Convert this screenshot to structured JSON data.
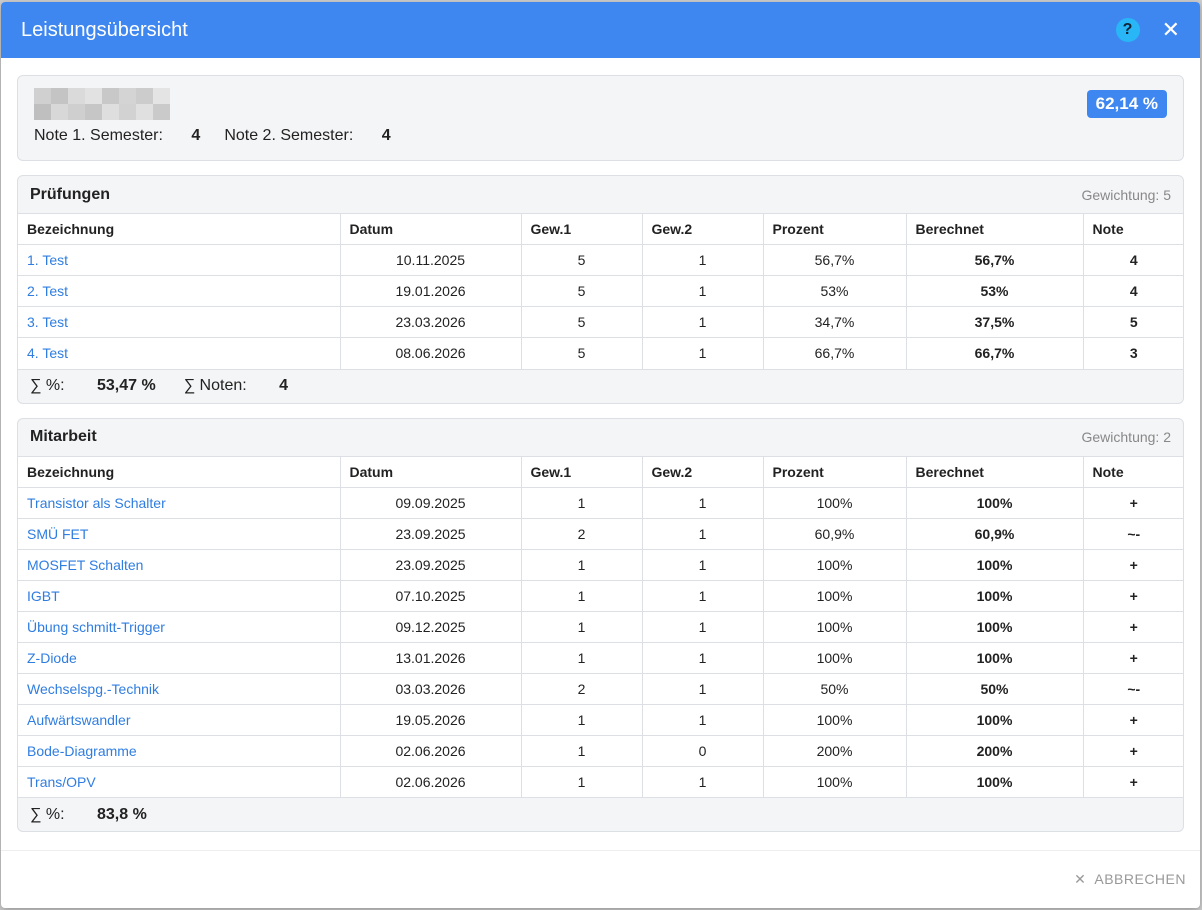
{
  "dialog": {
    "title": "Leistungsübersicht",
    "cancel": "ABBRECHEN"
  },
  "summary": {
    "badge": "62,14 %",
    "grades": [
      {
        "label": "Note 1. Semester:",
        "value": "4"
      },
      {
        "label": "Note 2. Semester:",
        "value": "4"
      }
    ]
  },
  "sections": [
    {
      "title": "Prüfungen",
      "weight": "Gewichtung: 5",
      "headers": [
        "Bezeichnung",
        "Datum",
        "Gew.1",
        "Gew.2",
        "Prozent",
        "Berechnet",
        "Note"
      ],
      "rows": [
        [
          "1. Test",
          "10.11.2025",
          "5",
          "1",
          "56,7%",
          "56,7%",
          "4"
        ],
        [
          "2. Test",
          "19.01.2026",
          "5",
          "1",
          "53%",
          "53%",
          "4"
        ],
        [
          "3. Test",
          "23.03.2026",
          "5",
          "1",
          "34,7%",
          "37,5%",
          "5"
        ],
        [
          "4. Test",
          "08.06.2026",
          "5",
          "1",
          "66,7%",
          "66,7%",
          "3"
        ]
      ],
      "totals": [
        {
          "label": "∑ %:",
          "value": "53,47 %"
        },
        {
          "label": "∑ Noten:",
          "value": "4"
        }
      ]
    },
    {
      "title": "Mitarbeit",
      "weight": "Gewichtung: 2",
      "headers": [
        "Bezeichnung",
        "Datum",
        "Gew.1",
        "Gew.2",
        "Prozent",
        "Berechnet",
        "Note"
      ],
      "rows": [
        [
          "Transistor als Schalter",
          "09.09.2025",
          "1",
          "1",
          "100%",
          "100%",
          "+"
        ],
        [
          "SMÜ FET",
          "23.09.2025",
          "2",
          "1",
          "60,9%",
          "60,9%",
          "~-"
        ],
        [
          "MOSFET Schalten",
          "23.09.2025",
          "1",
          "1",
          "100%",
          "100%",
          "+"
        ],
        [
          "IGBT",
          "07.10.2025",
          "1",
          "1",
          "100%",
          "100%",
          "+"
        ],
        [
          "Übung schmitt-Trigger",
          "09.12.2025",
          "1",
          "1",
          "100%",
          "100%",
          "+"
        ],
        [
          "Z-Diode",
          "13.01.2026",
          "1",
          "1",
          "100%",
          "100%",
          "+"
        ],
        [
          "Wechselspg.-Technik",
          "03.03.2026",
          "2",
          "1",
          "50%",
          "50%",
          "~-"
        ],
        [
          "Aufwärtswandler",
          "19.05.2026",
          "1",
          "1",
          "100%",
          "100%",
          "+"
        ],
        [
          "Bode-Diagramme",
          "02.06.2026",
          "1",
          "0",
          "200%",
          "200%",
          "+"
        ],
        [
          "Trans/OPV",
          "02.06.2026",
          "1",
          "1",
          "100%",
          "100%",
          "+"
        ]
      ],
      "totals": [
        {
          "label": "∑ %:",
          "value": "83,8 %"
        }
      ]
    }
  ]
}
